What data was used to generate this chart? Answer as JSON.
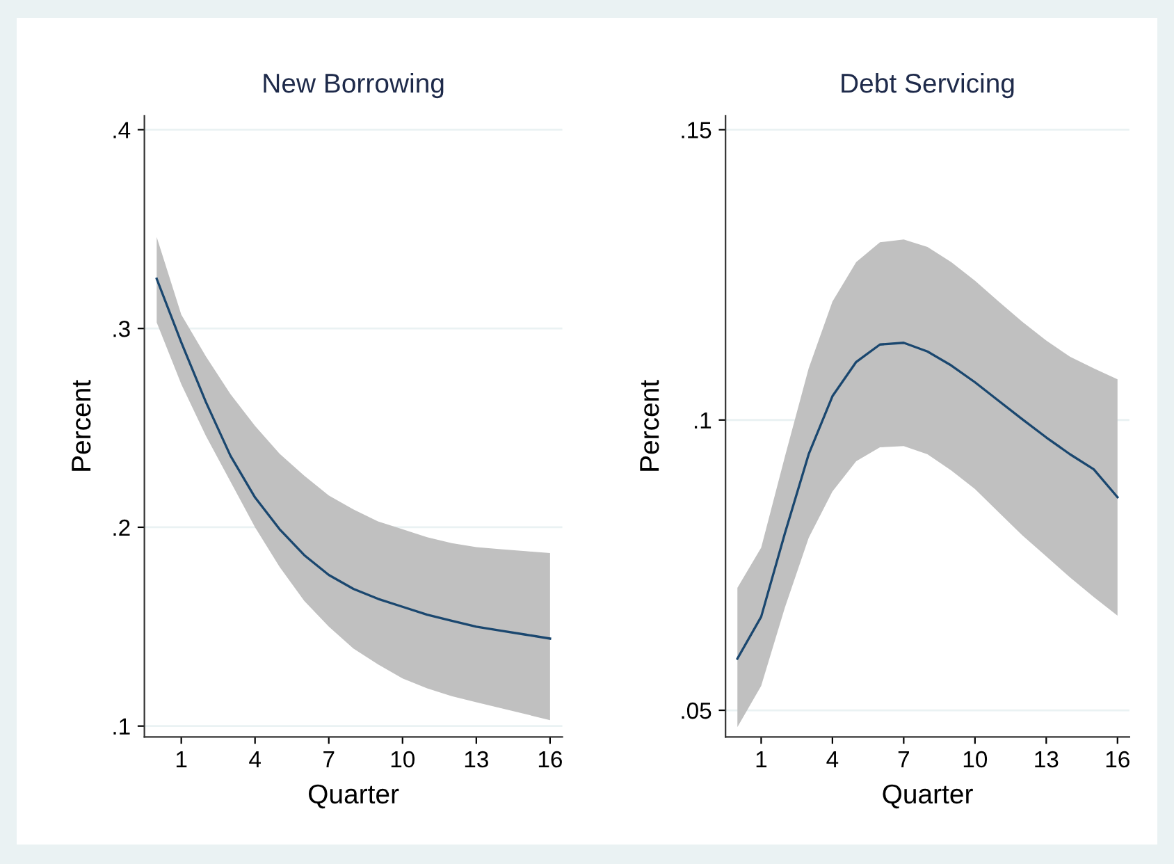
{
  "chart_data": [
    {
      "type": "line",
      "title": "New Borrowing",
      "xlabel": "Quarter",
      "ylabel": "Percent",
      "x": [
        0,
        1,
        2,
        3,
        4,
        5,
        6,
        7,
        8,
        9,
        10,
        11,
        12,
        13,
        14,
        15,
        16
      ],
      "series": [
        {
          "color": "#1a476f",
          "values": [
            0.325,
            0.293,
            0.263,
            0.236,
            0.215,
            0.199,
            0.186,
            0.176,
            0.169,
            0.164,
            0.16,
            0.156,
            0.153,
            0.15,
            0.148,
            0.146,
            0.144
          ],
          "lower": [
            0.303,
            0.272,
            0.246,
            0.223,
            0.2,
            0.18,
            0.163,
            0.15,
            0.139,
            0.131,
            0.124,
            0.119,
            0.115,
            0.112,
            0.109,
            0.106,
            0.103
          ],
          "upper": [
            0.346,
            0.307,
            0.286,
            0.267,
            0.251,
            0.237,
            0.226,
            0.216,
            0.209,
            0.203,
            0.199,
            0.195,
            0.192,
            0.19,
            0.189,
            0.188,
            0.187
          ]
        }
      ],
      "xlim": [
        -0.5,
        16.5
      ],
      "ylim": [
        0.0945,
        0.407
      ],
      "xticks": [
        1,
        4,
        7,
        10,
        13,
        16
      ],
      "yticks": [
        {
          "value": 0.1,
          "label": ".1"
        },
        {
          "value": 0.2,
          "label": ".2"
        },
        {
          "value": 0.3,
          "label": ".3"
        },
        {
          "value": 0.4,
          "label": ".4"
        }
      ],
      "grid": "y",
      "line_style": "solid"
    },
    {
      "type": "line",
      "title": "Debt Servicing",
      "xlabel": "Quarter",
      "ylabel": "Percent",
      "x": [
        0,
        1,
        2,
        3,
        4,
        5,
        6,
        7,
        8,
        9,
        10,
        11,
        12,
        13,
        14,
        15,
        16
      ],
      "series": [
        {
          "color": "#1a476f",
          "values": [
            0.0589,
            0.0661,
            0.0805,
            0.0941,
            0.1041,
            0.11,
            0.113,
            0.1133,
            0.1118,
            0.1094,
            0.1065,
            0.1033,
            0.1001,
            0.097,
            0.0941,
            0.0915,
            0.0867
          ],
          "lower": [
            0.0471,
            0.0542,
            0.0677,
            0.0797,
            0.0877,
            0.0929,
            0.0953,
            0.0955,
            0.0941,
            0.0913,
            0.0881,
            0.0841,
            0.0801,
            0.0765,
            0.0729,
            0.0695,
            0.0663
          ],
          "upper": [
            0.0711,
            0.078,
            0.0937,
            0.1089,
            0.1204,
            0.1272,
            0.1306,
            0.1311,
            0.1298,
            0.1272,
            0.124,
            0.1204,
            0.1169,
            0.1137,
            0.1109,
            0.1089,
            0.107
          ]
        }
      ],
      "xlim": [
        -0.5,
        16.5
      ],
      "ylim": [
        0.0454,
        0.1524
      ],
      "xticks": [
        1,
        4,
        7,
        10,
        13,
        16
      ],
      "yticks": [
        {
          "value": 0.05,
          "label": ".05"
        },
        {
          "value": 0.1,
          "label": ".1"
        },
        {
          "value": 0.15,
          "label": ".15"
        }
      ],
      "grid": "y",
      "line_style": "solid"
    }
  ]
}
